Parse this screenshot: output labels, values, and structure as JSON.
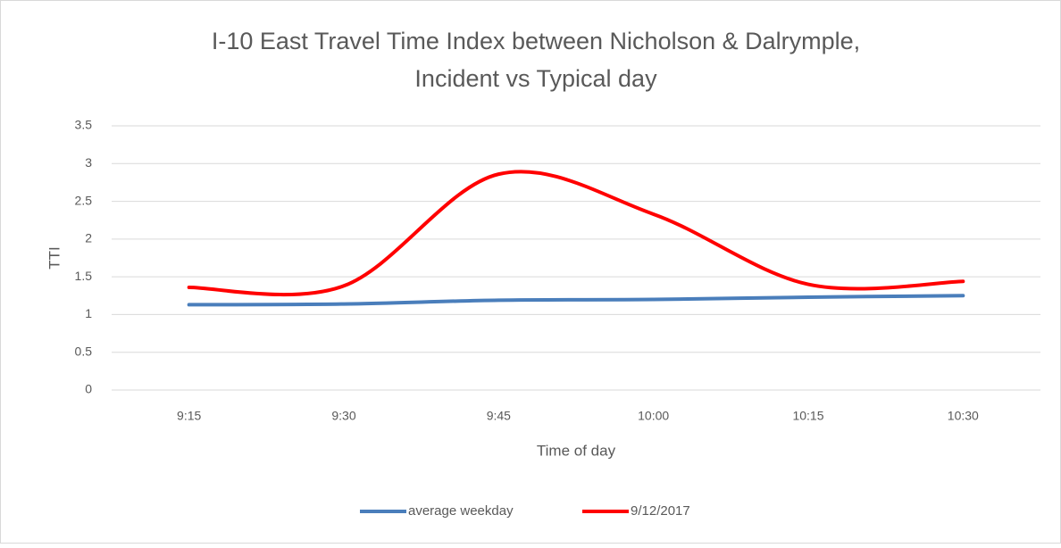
{
  "chart_data": {
    "type": "line",
    "title": [
      "I-10 East Travel Time Index between Nicholson & Dalrymple,",
      "Incident vs Typical day"
    ],
    "x_label": "Time of day",
    "y_label": "TTI",
    "categories": [
      "9:15",
      "9:30",
      "9:45",
      "10:00",
      "10:15",
      "10:30"
    ],
    "series": [
      {
        "name": "average weekday",
        "color": "#4a7ebb",
        "values": [
          1.13,
          1.14,
          1.19,
          1.2,
          1.23,
          1.25
        ]
      },
      {
        "name": "9/12/2017",
        "color": "#ff0000",
        "values": [
          1.36,
          1.38,
          2.86,
          2.33,
          1.4,
          1.44
        ]
      }
    ],
    "ylim": [
      0,
      3.5
    ],
    "yticks": [
      0,
      0.5,
      1,
      1.5,
      2,
      2.5,
      3,
      3.5
    ],
    "grid": true,
    "smooth": true,
    "legend": "bottom"
  }
}
